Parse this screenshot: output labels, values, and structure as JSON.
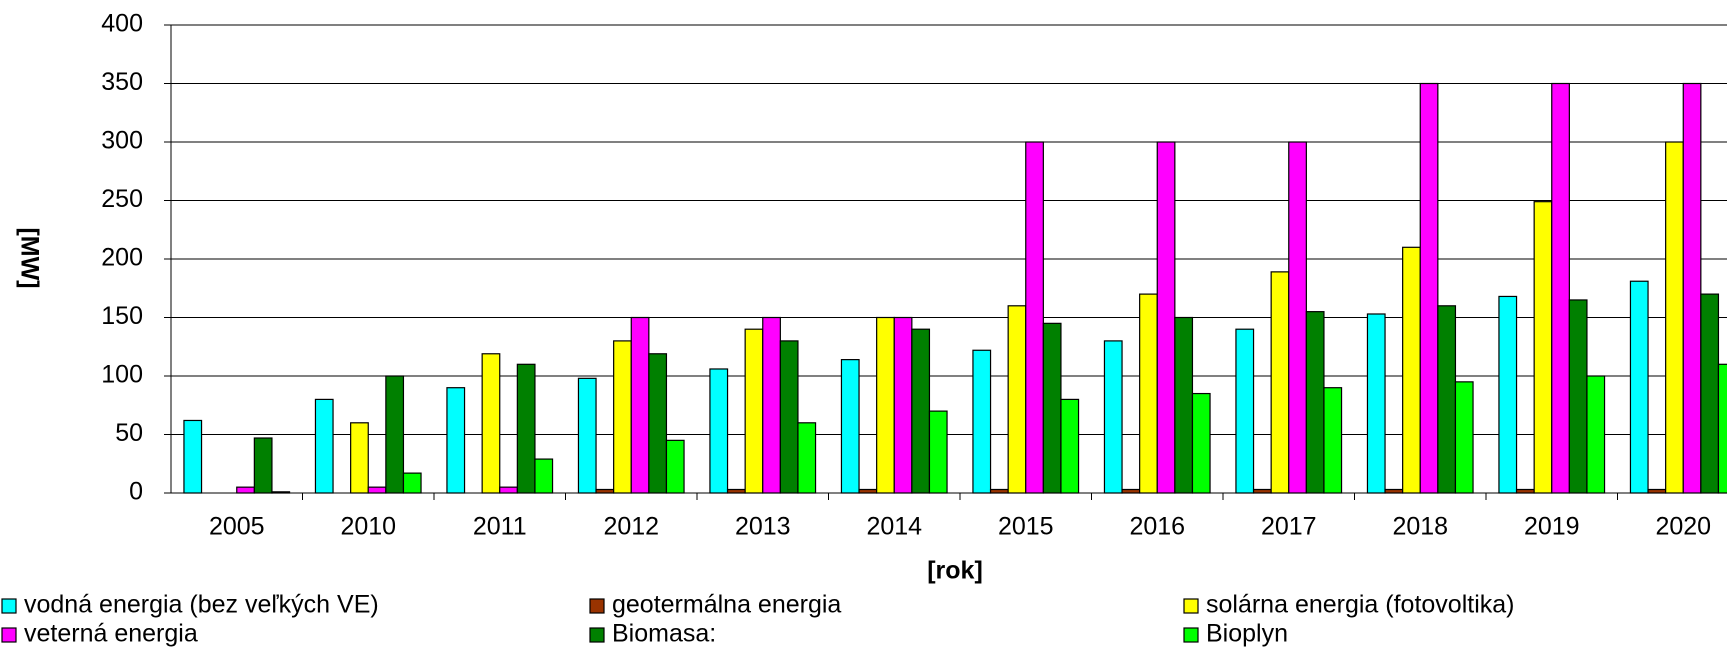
{
  "chart_data": {
    "type": "bar",
    "y_label": "[MW]",
    "x_label": "[rok]",
    "categories": [
      "2005",
      "2010",
      "2011",
      "2012",
      "2013",
      "2014",
      "2015",
      "2016",
      "2017",
      "2018",
      "2019",
      "2020"
    ],
    "series": [
      {
        "name": "vodná energia (bez veľkých VE)",
        "color": "#00ffff",
        "values": [
          62,
          80,
          90,
          98,
          106,
          114,
          122,
          130,
          140,
          153,
          168,
          181
        ]
      },
      {
        "name": "geotermálna energia",
        "color": "#993300",
        "values": [
          0,
          0,
          0,
          3,
          3,
          3,
          3,
          3,
          3,
          3,
          3,
          3
        ]
      },
      {
        "name": "solárna energia (fotovoltika)",
        "color": "#ffff00",
        "values": [
          0,
          60,
          119,
          130,
          140,
          150,
          160,
          170,
          189,
          210,
          249,
          300
        ]
      },
      {
        "name": "veterná energia",
        "color": "#ff00ff",
        "values": [
          5,
          5,
          5,
          150,
          150,
          150,
          300,
          300,
          300,
          350,
          350,
          350
        ]
      },
      {
        "name": "Biomasa:",
        "color": "#008000",
        "values": [
          47,
          100,
          110,
          119,
          130,
          140,
          145,
          150,
          155,
          160,
          165,
          170
        ]
      },
      {
        "name": "Bioplyn",
        "color": "#00ff00",
        "values": [
          1,
          17,
          29,
          45,
          60,
          70,
          80,
          85,
          90,
          95,
          100,
          110
        ]
      }
    ],
    "ylim": [
      0,
      400
    ],
    "yticks": [
      0,
      50,
      100,
      150,
      200,
      250,
      300,
      350,
      400
    ],
    "grid": true
  }
}
